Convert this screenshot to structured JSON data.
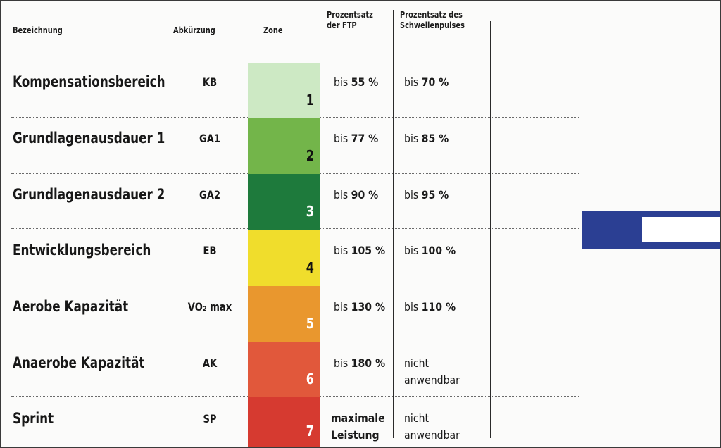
{
  "headers": {
    "name": "Bezeichnung",
    "abbr": "Abkürzung",
    "zone": "Zone",
    "ftp_line1": "Prozentsatz",
    "ftp_line2": "der FTP",
    "hr_line1": "Prozentsatz des",
    "hr_line2": "Schwellenpulses"
  },
  "rows": [
    {
      "name": "Kompensationsbereich",
      "abbr": "KB",
      "zone": "1",
      "color": "#cde9c4",
      "num_color": "#111111",
      "ftp_prefix": "bis ",
      "ftp_value": "55 %",
      "hr_prefix": "bis ",
      "hr_value": "70 %"
    },
    {
      "name": "Grundlagenausdauer 1",
      "abbr": "GA1",
      "zone": "2",
      "color": "#73b54a",
      "num_color": "#111111",
      "ftp_prefix": "bis ",
      "ftp_value": "77 %",
      "hr_prefix": "bis ",
      "hr_value": "85 %"
    },
    {
      "name": "Grundlagenausdauer 2",
      "abbr": "GA2",
      "zone": "3",
      "color": "#1e7a3c",
      "num_color": "#ffffff",
      "ftp_prefix": "bis ",
      "ftp_value": "90 %",
      "hr_prefix": "bis ",
      "hr_value": "95 %"
    },
    {
      "name": "Entwicklungsbereich",
      "abbr": "EB",
      "zone": "4",
      "color": "#f0dd2c",
      "num_color": "#111111",
      "ftp_prefix": "bis ",
      "ftp_value": "105 %",
      "hr_prefix": "bis ",
      "hr_value": "100 %"
    },
    {
      "name": "Aerobe Kapazität",
      "abbr": "VO₂ max",
      "zone": "5",
      "color": "#e9972e",
      "num_color": "#ffffff",
      "ftp_prefix": "bis ",
      "ftp_value": "130 %",
      "hr_prefix": "bis ",
      "hr_value": "110 %"
    },
    {
      "name": "Anaerobe Kapazität",
      "abbr": "AK",
      "zone": "6",
      "color": "#e1583b",
      "num_color": "#ffffff",
      "ftp_prefix": "bis ",
      "ftp_value": "180 %",
      "hr_prefix": "",
      "hr_value": "",
      "hr_text_line1": "nicht",
      "hr_text_line2": "anwendbar"
    },
    {
      "name": "Sprint",
      "abbr": "SP",
      "zone": "7",
      "color": "#d63a30",
      "num_color": "#ffffff",
      "ftp_prefix": "",
      "ftp_value": "",
      "ftp_text_line1": "maximale",
      "ftp_text_line2": "Leistung",
      "hr_prefix": "",
      "hr_value": "",
      "hr_text_line1": "nicht",
      "hr_text_line2": "anwendbar"
    }
  ]
}
